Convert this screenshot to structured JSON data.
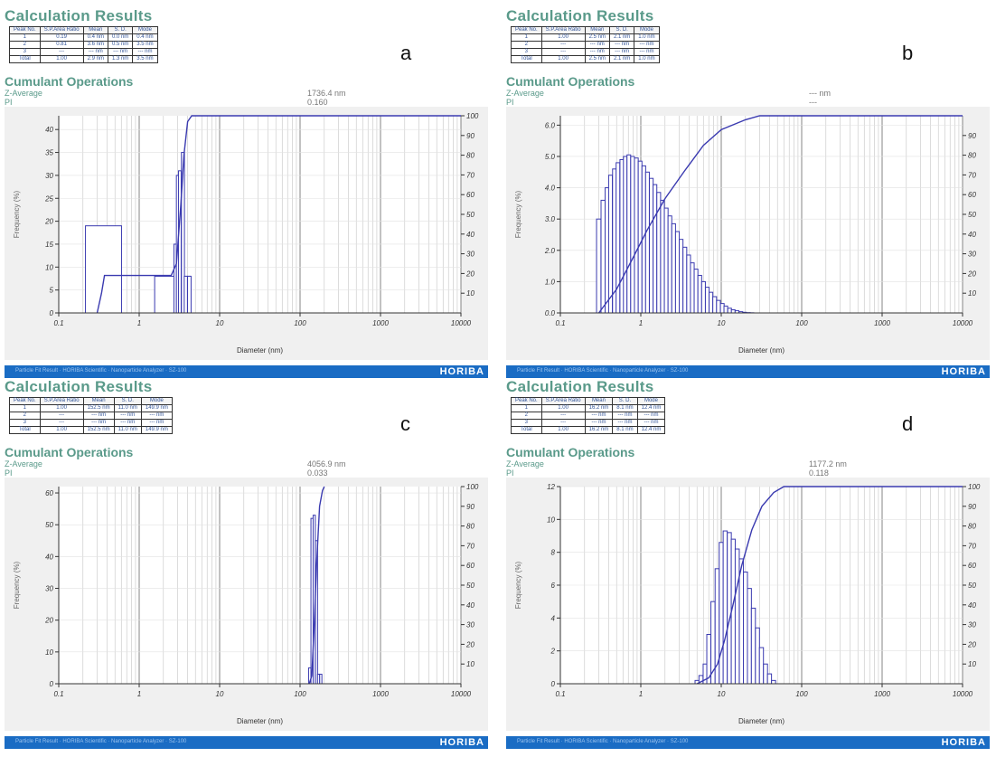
{
  "colors": {
    "series": "#3a3ab0",
    "heading": "#5a9a8a",
    "footer": "#1a6cc4"
  },
  "panels": [
    {
      "letter": "a",
      "calc_title": "Calculation Results",
      "cumulant_title": "Cumulant Operations",
      "z_label": "Z-Average",
      "z_value": "1736.4 nm",
      "pi_label": "PI",
      "pi_value": "0.160",
      "table": {
        "headers": [
          "Peak No.",
          "S.P.Area Ratio",
          "Mean",
          "S. D.",
          "Mode"
        ],
        "rows": [
          [
            "1",
            "0.19",
            "0.4 nm",
            "0.0 nm",
            "0.4 nm"
          ],
          [
            "2",
            "0.81",
            "3.6 nm",
            "0.5 nm",
            "3.5 nm"
          ],
          [
            "3",
            "---",
            "--- nm",
            "--- nm",
            "--- nm"
          ],
          [
            "Total",
            "1.00",
            "2.9 nm",
            "1.3 nm",
            "3.5 nm"
          ]
        ]
      },
      "footer_text": "Particle Fit Result · HORIBA Scientific · Nanoparticle Analyzer · SZ-100",
      "logo": "HORIBA"
    },
    {
      "letter": "b",
      "calc_title": "Calculation Results",
      "cumulant_title": "Cumulant Operations",
      "z_label": "Z-Average",
      "z_value": "--- nm",
      "pi_label": "PI",
      "pi_value": "---",
      "table": {
        "headers": [
          "Peak No.",
          "S.P.Area Ratio",
          "Mean",
          "S. D.",
          "Mode"
        ],
        "rows": [
          [
            "1",
            "1.00",
            "2.5 nm",
            "2.1 nm",
            "1.0 nm"
          ],
          [
            "2",
            "---",
            "--- nm",
            "--- nm",
            "--- nm"
          ],
          [
            "3",
            "---",
            "--- nm",
            "--- nm",
            "--- nm"
          ],
          [
            "Total",
            "1.00",
            "2.5 nm",
            "2.1 nm",
            "1.0 nm"
          ]
        ]
      },
      "footer_text": "Particle Fit Result · HORIBA Scientific · Nanoparticle Analyzer · SZ-100",
      "logo": "HORIBA"
    },
    {
      "letter": "c",
      "calc_title": "Calculation Results",
      "cumulant_title": "Cumulant Operations",
      "z_label": "Z-Average",
      "z_value": "4056.9 nm",
      "pi_label": "PI",
      "pi_value": "0.033",
      "table": {
        "headers": [
          "Peak No.",
          "S.P.Area Ratio",
          "Mean",
          "S. D.",
          "Mode"
        ],
        "rows": [
          [
            "1",
            "1.00",
            "152.5 nm",
            "11.0 nm",
            "149.9 nm"
          ],
          [
            "2",
            "---",
            "--- nm",
            "--- nm",
            "--- nm"
          ],
          [
            "3",
            "---",
            "--- nm",
            "--- nm",
            "--- nm"
          ],
          [
            "Total",
            "1.00",
            "152.5 nm",
            "11.0 nm",
            "149.9 nm"
          ]
        ]
      },
      "footer_text": "Particle Fit Result · HORIBA Scientific · Nanoparticle Analyzer · SZ-100",
      "logo": "HORIBA"
    },
    {
      "letter": "d",
      "calc_title": "Calculation Results",
      "cumulant_title": "Cumulant Operations",
      "z_label": "Z-Average",
      "z_value": "1177.2 nm",
      "pi_label": "PI",
      "pi_value": "0.118",
      "table": {
        "headers": [
          "Peak No.",
          "S.P.Area Ratio",
          "Mean",
          "S. D.",
          "Mode"
        ],
        "rows": [
          [
            "1",
            "1.00",
            "16.2 nm",
            "8.1 nm",
            "12.4 nm"
          ],
          [
            "2",
            "---",
            "--- nm",
            "--- nm",
            "--- nm"
          ],
          [
            "3",
            "---",
            "--- nm",
            "--- nm",
            "--- nm"
          ],
          [
            "Total",
            "1.00",
            "16.2 nm",
            "8.1 nm",
            "12.4 nm"
          ]
        ]
      },
      "footer_text": "Particle Fit Result · HORIBA Scientific · Nanoparticle Analyzer · SZ-100",
      "logo": "HORIBA"
    }
  ],
  "chart_data": [
    {
      "type": "bar",
      "panel": "a",
      "xlabel": "Diameter (nm)",
      "ylabel": "Frequency (%)",
      "x_scale": "log",
      "xlim": [
        0.1,
        10000
      ],
      "x_ticks": [
        "0.1",
        "1",
        "10",
        "100",
        "1000",
        "10000"
      ],
      "ylim": [
        0,
        43
      ],
      "y_ticks": [
        0,
        5,
        10,
        15,
        20,
        25,
        30,
        35,
        40
      ],
      "y2lim": [
        0,
        100
      ],
      "y2_ticks": [
        10,
        20,
        30,
        40,
        50,
        60,
        70,
        80,
        90,
        100
      ],
      "grid": true,
      "histogram": {
        "diameters": [
          0.33,
          0.36,
          2.6,
          2.8,
          3.0,
          3.2,
          3.5,
          3.8,
          4.2
        ],
        "frequency": [
          10,
          19,
          8,
          15,
          30,
          31,
          35,
          8,
          8
        ]
      },
      "cumulative": {
        "diameters": [
          0.3,
          0.34,
          0.37,
          1.5,
          2.5,
          2.9,
          3.3,
          3.6,
          4.0,
          4.5,
          10000
        ],
        "percent": [
          0,
          10,
          19,
          19,
          19,
          25,
          55,
          80,
          97,
          100,
          100
        ]
      }
    },
    {
      "type": "bar",
      "panel": "b",
      "xlabel": "Diameter (nm)",
      "ylabel": "Frequency (%)",
      "x_scale": "log",
      "xlim": [
        0.1,
        10000
      ],
      "x_ticks": [
        "0.1",
        "1",
        "10",
        "100",
        "1000",
        "10000"
      ],
      "ylim": [
        0,
        6.3
      ],
      "y_ticks": [
        "0.0",
        "1.0",
        "2.0",
        "3.0",
        "4.0",
        "5.0",
        "6.0"
      ],
      "y2lim": [
        0,
        100
      ],
      "y2_ticks": [
        10,
        20,
        30,
        40,
        50,
        60,
        70,
        80,
        90
      ],
      "grid": true,
      "histogram": {
        "diameters": [
          0.3,
          0.34,
          0.38,
          0.42,
          0.47,
          0.52,
          0.58,
          0.64,
          0.71,
          0.79,
          0.88,
          0.98,
          1.09,
          1.21,
          1.35,
          1.5,
          1.67,
          1.86,
          2.07,
          2.3,
          2.56,
          2.85,
          3.17,
          3.53,
          3.93,
          4.37,
          4.86,
          5.41,
          6.02,
          6.7,
          7.45,
          8.29,
          9.23,
          10.3,
          11.4,
          12.7,
          14.1,
          15.7,
          17.5,
          19.5,
          21.7,
          24.1
        ],
        "frequency": [
          3.0,
          3.6,
          4.0,
          4.4,
          4.6,
          4.8,
          4.9,
          5.0,
          5.05,
          5.0,
          4.95,
          4.85,
          4.7,
          4.5,
          4.3,
          4.1,
          3.85,
          3.6,
          3.35,
          3.1,
          2.85,
          2.6,
          2.35,
          2.1,
          1.85,
          1.6,
          1.4,
          1.2,
          1.0,
          0.82,
          0.66,
          0.52,
          0.4,
          0.3,
          0.22,
          0.15,
          0.1,
          0.07,
          0.04,
          0.02,
          0.01,
          0.005
        ]
      },
      "cumulative": {
        "diameters": [
          0.3,
          0.5,
          0.8,
          1.2,
          2.0,
          3.5,
          6.0,
          10,
          20,
          30,
          10000
        ],
        "percent": [
          0,
          12,
          28,
          42,
          58,
          72,
          85,
          93,
          98,
          100,
          100
        ]
      }
    },
    {
      "type": "bar",
      "panel": "c",
      "xlabel": "Diameter (nm)",
      "ylabel": "Frequency (%)",
      "x_scale": "log",
      "xlim": [
        0.1,
        10000
      ],
      "x_ticks": [
        "0.1",
        "1",
        "10",
        "100",
        "1000",
        "10000"
      ],
      "ylim": [
        0,
        62
      ],
      "y_ticks": [
        0,
        10,
        20,
        30,
        40,
        50,
        60
      ],
      "y2lim": [
        0,
        100
      ],
      "y2_ticks": [
        10,
        20,
        30,
        40,
        50,
        60,
        70,
        80,
        90,
        100
      ],
      "grid": true,
      "histogram": {
        "diameters": [
          132,
          141,
          150,
          160,
          170,
          181
        ],
        "frequency": [
          5,
          52,
          53,
          45,
          3,
          3
        ]
      },
      "cumulative": {
        "diameters": [
          130,
          140,
          150,
          160,
          175,
          190,
          200
        ],
        "percent": [
          0,
          4,
          30,
          60,
          90,
          98,
          100
        ]
      }
    },
    {
      "type": "bar",
      "panel": "d",
      "xlabel": "Diameter (nm)",
      "ylabel": "Frequency (%)",
      "x_scale": "log",
      "xlim": [
        0.1,
        10000
      ],
      "x_ticks": [
        "0.1",
        "1",
        "10",
        "100",
        "1000",
        "10000"
      ],
      "ylim": [
        0,
        12
      ],
      "y_ticks": [
        0,
        2,
        4,
        6,
        8,
        10,
        12
      ],
      "y2lim": [
        0,
        100
      ],
      "y2_ticks": [
        10,
        20,
        30,
        40,
        50,
        60,
        70,
        80,
        90,
        100
      ],
      "grid": true,
      "histogram": {
        "diameters": [
          5.0,
          5.6,
          6.3,
          7.0,
          7.9,
          8.9,
          10.0,
          11.2,
          12.6,
          14.1,
          15.8,
          17.8,
          20.0,
          22.4,
          25.1,
          28.2,
          31.6,
          35.5,
          39.8,
          44.7
        ],
        "frequency": [
          0.2,
          0.5,
          1.2,
          3.0,
          5.0,
          7.0,
          8.6,
          9.3,
          9.2,
          8.8,
          8.2,
          7.6,
          6.8,
          5.8,
          4.6,
          3.4,
          2.2,
          1.2,
          0.6,
          0.2
        ]
      },
      "cumulative": {
        "diameters": [
          5,
          7,
          9,
          11,
          14,
          18,
          24,
          32,
          45,
          60,
          10000
        ],
        "percent": [
          0,
          3,
          10,
          22,
          40,
          60,
          78,
          90,
          97,
          100,
          100
        ]
      }
    }
  ]
}
